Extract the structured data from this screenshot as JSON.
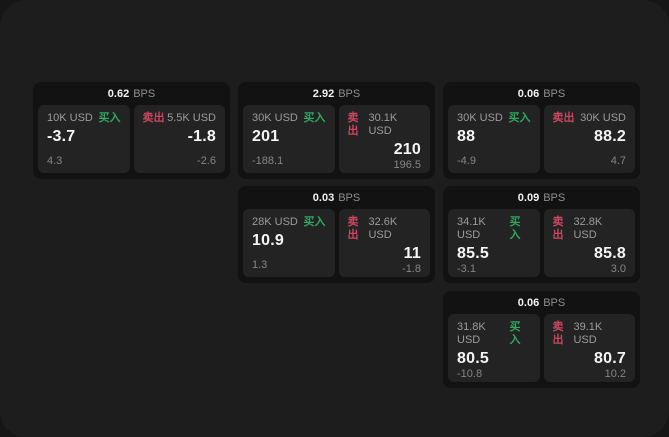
{
  "colors": {
    "buy": "#2fa85e",
    "sell": "#c9475e",
    "card_bg": "#121212",
    "panel_bg": "#232324",
    "board_bg": "#1d1d1e"
  },
  "cards": [
    {
      "bps_value": "0.62",
      "bps_unit": "BPS",
      "buy": {
        "notional": "10K USD",
        "side_label": "买入",
        "price": "-3.7",
        "delta": "4.3"
      },
      "sell": {
        "side_label": "卖出",
        "notional": "5.5K USD",
        "price": "-1.8",
        "delta": "-2.6"
      }
    },
    {
      "bps_value": "2.92",
      "bps_unit": "BPS",
      "buy": {
        "notional": "30K USD",
        "side_label": "买入",
        "price": "201",
        "delta": "-188.1"
      },
      "sell": {
        "side_label": "卖出",
        "notional": "30.1K USD",
        "price": "210",
        "delta": "196.5"
      }
    },
    {
      "bps_value": "0.06",
      "bps_unit": "BPS",
      "buy": {
        "notional": "30K USD",
        "side_label": "买入",
        "price": "88",
        "delta": "-4.9"
      },
      "sell": {
        "side_label": "卖出",
        "notional": "30K USD",
        "price": "88.2",
        "delta": "4.7"
      }
    },
    {
      "bps_value": "0.03",
      "bps_unit": "BPS",
      "buy": {
        "notional": "28K USD",
        "side_label": "买入",
        "price": "10.9",
        "delta": "1.3"
      },
      "sell": {
        "side_label": "卖出",
        "notional": "32.6K USD",
        "price": "11",
        "delta": "-1.8"
      }
    },
    {
      "bps_value": "0.09",
      "bps_unit": "BPS",
      "buy": {
        "notional": "34.1K USD",
        "side_label": "买入",
        "price": "85.5",
        "delta": "-3.1"
      },
      "sell": {
        "side_label": "卖出",
        "notional": "32.8K USD",
        "price": "85.8",
        "delta": "3.0"
      }
    },
    {
      "bps_value": "0.06",
      "bps_unit": "BPS",
      "buy": {
        "notional": "31.8K USD",
        "side_label": "买入",
        "price": "80.5",
        "delta": "-10.8"
      },
      "sell": {
        "side_label": "卖出",
        "notional": "39.1K USD",
        "price": "80.7",
        "delta": "10.2"
      }
    }
  ]
}
